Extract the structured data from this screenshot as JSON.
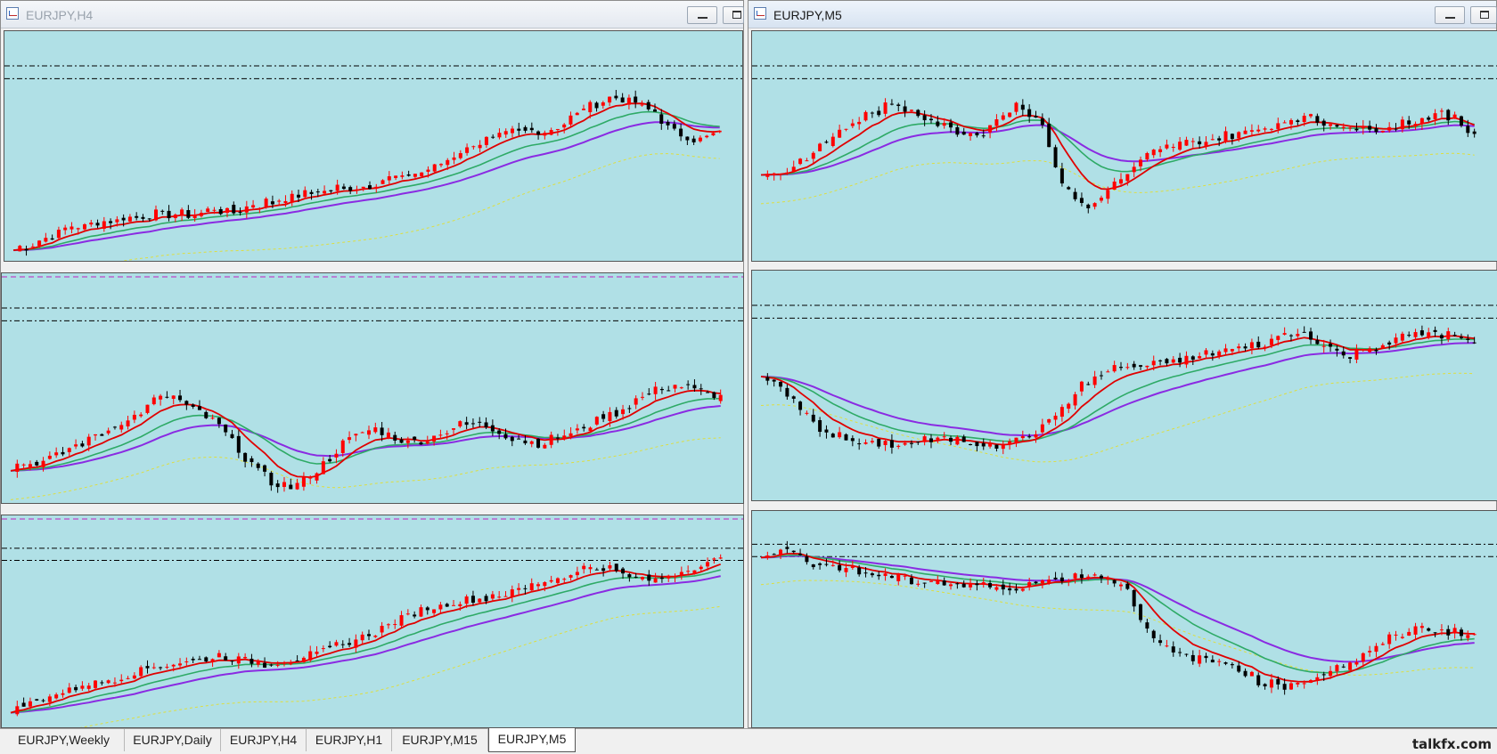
{
  "windows": [
    {
      "title": "EURJPY,H4",
      "active": false
    },
    {
      "title": "EURJPY,M5",
      "active": true
    }
  ],
  "tabs": [
    "EURJPY,Weekly",
    "EURJPY,Daily",
    "EURJPY,H4",
    "EURJPY,H1",
    "EURJPY,M15",
    "EURJPY,M5"
  ],
  "active_tab": "EURJPY,M5",
  "watermark": "talkfx.com",
  "colors": {
    "background": "#b0e0e6",
    "bull": "#ff0000",
    "bear": "#000000",
    "ma_fast": "#e00000",
    "ma_mid": "#2eaa66",
    "ma_slow": "#8a2be2",
    "band": "#dede40"
  },
  "chart_data": [
    {
      "type": "candlestick",
      "pane": "left-top",
      "shape": [
        0,
        4,
        9,
        12,
        13,
        15,
        16,
        18,
        17,
        20,
        19,
        22,
        24,
        27,
        29,
        30,
        32,
        34,
        36,
        40,
        46,
        52,
        55,
        58,
        57,
        62,
        70,
        74,
        72,
        67,
        56,
        54,
        57
      ]
    },
    {
      "type": "candlestick",
      "pane": "left-middle",
      "shape": [
        12,
        14,
        16,
        22,
        26,
        32,
        36,
        44,
        46,
        40,
        34,
        24,
        12,
        4,
        2,
        10,
        20,
        28,
        30,
        26,
        24,
        28,
        32,
        34,
        30,
        26,
        24,
        26,
        30,
        36,
        40,
        46,
        50,
        52,
        48,
        46
      ]
    },
    {
      "type": "candlestick",
      "pane": "left-bottom",
      "shape": [
        4,
        8,
        12,
        16,
        18,
        22,
        26,
        28,
        30,
        32,
        30,
        28,
        30,
        32,
        36,
        40,
        46,
        52,
        56,
        60,
        62,
        64,
        66,
        70,
        74,
        78,
        80,
        74,
        72,
        76,
        80,
        84
      ]
    },
    {
      "type": "candlestick",
      "pane": "right-top",
      "shape": [
        36,
        38,
        44,
        52,
        60,
        66,
        70,
        68,
        62,
        58,
        56,
        64,
        72,
        60,
        30,
        20,
        28,
        38,
        46,
        50,
        52,
        54,
        56,
        58,
        62,
        64,
        62,
        60,
        58,
        60,
        62,
        66,
        64,
        56
      ]
    },
    {
      "type": "candlestick",
      "pane": "right-middle",
      "shape": [
        56,
        48,
        36,
        28,
        24,
        22,
        22,
        23,
        24,
        24,
        23,
        22,
        24,
        30,
        40,
        52,
        58,
        60,
        60,
        62,
        64,
        66,
        68,
        70,
        74,
        76,
        70,
        64,
        68,
        72,
        74,
        76,
        74,
        70
      ]
    },
    {
      "type": "candlestick",
      "pane": "right-bottom",
      "shape": [
        84,
        86,
        82,
        78,
        76,
        74,
        72,
        70,
        70,
        68,
        68,
        66,
        68,
        70,
        72,
        74,
        72,
        66,
        40,
        34,
        30,
        28,
        26,
        18,
        16,
        18,
        22,
        26,
        32,
        40,
        44,
        46,
        44,
        42
      ]
    }
  ]
}
